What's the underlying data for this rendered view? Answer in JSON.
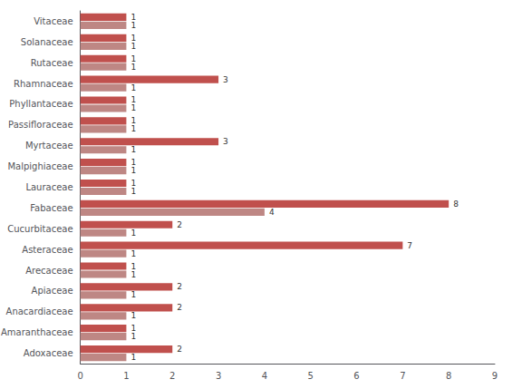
{
  "chart_data": {
    "type": "bar",
    "orientation": "horizontal",
    "categories": [
      "Adoxaceae",
      "Amaranthaceae",
      "Anacardiaceae",
      "Apiaceae",
      "Arecaceae",
      "Asteraceae",
      "Cucurbitaceae",
      "Fabaceae",
      "Lauraceae",
      "Malpighiaceae",
      "Myrtaceae",
      "Passifloraceae",
      "Phyllantaceae",
      "Rhamnaceae",
      "Rutaceae",
      "Solanaceae",
      "Vitaceae"
    ],
    "series": [
      {
        "color": "#c0504d",
        "values": [
          2,
          1,
          2,
          2,
          1,
          7,
          2,
          8,
          1,
          1,
          3,
          1,
          1,
          3,
          1,
          1,
          1
        ]
      },
      {
        "color": "#be8784",
        "values": [
          1,
          1,
          1,
          1,
          1,
          1,
          1,
          4,
          1,
          1,
          1,
          1,
          1,
          1,
          1,
          1,
          1
        ]
      }
    ],
    "xlim": [
      0,
      9
    ],
    "xticks": [
      0,
      1,
      2,
      3,
      4,
      5,
      6,
      7,
      8,
      9
    ],
    "data_labels": true,
    "grid": false
  }
}
